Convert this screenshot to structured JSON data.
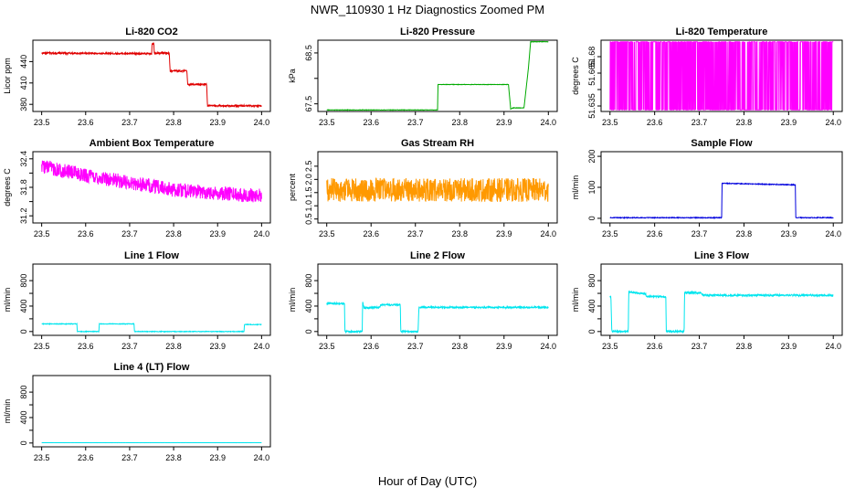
{
  "title": "NWR_110930  1 Hz Diagnostics Zoomed PM",
  "xlabel": "Hour of Day (UTC)",
  "chart_data": [
    {
      "type": "line",
      "title": "Li-820 CO2",
      "ylabel": "Licor ppm",
      "xlim": [
        23.48,
        24.02
      ],
      "ylim": [
        370,
        470
      ],
      "xticks": [
        "23.5",
        "23.6",
        "23.7",
        "23.8",
        "23.9",
        "24.0"
      ],
      "yticks": [
        {
          "v": 380,
          "label": "380"
        },
        {
          "v": 410,
          "label": "410"
        },
        {
          "v": 440,
          "label": "440"
        }
      ],
      "color": "#e00000",
      "noise": 1.2,
      "series": [
        {
          "x": [
            23.5,
            23.75,
            23.751,
            23.755,
            23.756,
            23.79,
            23.792,
            23.83,
            23.832,
            23.875,
            23.877,
            24.0
          ],
          "y": [
            452,
            451,
            465,
            466,
            452,
            452,
            427,
            427,
            408,
            408,
            378,
            378
          ]
        }
      ]
    },
    {
      "type": "line",
      "title": "Li-820 Pressure",
      "ylabel": "kPa",
      "xlim": [
        23.48,
        24.02
      ],
      "ylim": [
        67.35,
        68.75
      ],
      "xticks": [
        "23.5",
        "23.6",
        "23.7",
        "23.8",
        "23.9",
        "24.0"
      ],
      "yticks": [
        {
          "v": 67.5,
          "label": "67.5"
        },
        {
          "v": 68.0,
          "label": ""
        },
        {
          "v": 68.5,
          "label": "68.5"
        }
      ],
      "color": "#00aa00",
      "noise": 0.004,
      "series": [
        {
          "x": [
            23.5,
            23.75,
            23.751,
            23.91,
            23.915,
            23.92,
            23.945,
            23.955,
            23.96,
            24.0
          ],
          "y": [
            67.38,
            67.38,
            67.88,
            67.88,
            67.4,
            67.42,
            67.42,
            68.2,
            68.72,
            68.72
          ]
        }
      ]
    },
    {
      "type": "line",
      "title": "Li-820 Temperature",
      "ylabel": "degrees C",
      "xlim": [
        23.48,
        24.02
      ],
      "ylim": [
        51.63,
        51.695
      ],
      "xticks": [
        "23.5",
        "23.6",
        "23.7",
        "23.8",
        "23.9",
        "24.0"
      ],
      "yticks": [
        {
          "v": 51.635,
          "label": "51.635"
        },
        {
          "v": 51.65,
          "label": ""
        },
        {
          "v": 51.665,
          "label": "51.665"
        },
        {
          "v": 51.68,
          "label": "51.68"
        }
      ],
      "color": "#ff00ff",
      "toggle": [
        51.6315,
        51.6935
      ],
      "series": [
        {
          "x": [
            23.5,
            24.0
          ],
          "y": [
            51.6315,
            51.6935
          ]
        }
      ]
    },
    {
      "type": "line",
      "title": "Ambient Box Temperature",
      "ylabel": "degrees C",
      "xlim": [
        23.48,
        24.02
      ],
      "ylim": [
        31.05,
        32.55
      ],
      "xticks": [
        "23.5",
        "23.6",
        "23.7",
        "23.8",
        "23.9",
        "24.0"
      ],
      "yticks": [
        {
          "v": 31.2,
          "label": "31.2"
        },
        {
          "v": 31.5,
          "label": ""
        },
        {
          "v": 31.8,
          "label": "31.8"
        },
        {
          "v": 32.1,
          "label": ""
        },
        {
          "v": 32.4,
          "label": "32.4"
        }
      ],
      "color": "#ff00ff",
      "noise": 0.15,
      "series": [
        {
          "x": [
            23.5,
            23.6,
            23.7,
            23.8,
            23.9,
            24.0
          ],
          "y": [
            32.25,
            32.05,
            31.9,
            31.75,
            31.68,
            31.62
          ]
        }
      ]
    },
    {
      "type": "line",
      "title": "Gas Stream RH",
      "ylabel": "percent",
      "xlim": [
        23.48,
        24.02
      ],
      "ylim": [
        0.35,
        3.05
      ],
      "xticks": [
        "23.5",
        "23.6",
        "23.7",
        "23.8",
        "23.9",
        "24.0"
      ],
      "yticks": [
        {
          "v": 0.5,
          "label": "0.5"
        },
        {
          "v": 1.0,
          "label": "1.0"
        },
        {
          "v": 1.5,
          "label": "1.5"
        },
        {
          "v": 2.0,
          "label": "2.0"
        },
        {
          "v": 2.5,
          "label": "2.5"
        }
      ],
      "color": "#ff9900",
      "noise": 0.45,
      "series": [
        {
          "x": [
            23.5,
            24.0
          ],
          "y": [
            1.6,
            1.6
          ]
        }
      ]
    },
    {
      "type": "line",
      "title": "Sample Flow",
      "ylabel": "ml/min",
      "xlim": [
        23.48,
        24.02
      ],
      "ylim": [
        -15,
        215
      ],
      "xticks": [
        "23.5",
        "23.6",
        "23.7",
        "23.8",
        "23.9",
        "24.0"
      ],
      "yticks": [
        {
          "v": 0,
          "label": "0"
        },
        {
          "v": 100,
          "label": "100"
        },
        {
          "v": 200,
          "label": "200"
        }
      ],
      "color": "#0000dd",
      "noise": 1.2,
      "series": [
        {
          "x": [
            23.5,
            23.75,
            23.751,
            23.915,
            23.916,
            24.0
          ],
          "y": [
            2,
            2,
            113,
            108,
            2,
            2
          ]
        }
      ]
    },
    {
      "type": "line",
      "title": "Line 1 Flow",
      "ylabel": "ml/min",
      "xlim": [
        23.48,
        24.02
      ],
      "ylim": [
        -60,
        1060
      ],
      "xticks": [
        "23.5",
        "23.6",
        "23.7",
        "23.8",
        "23.9",
        "24.0"
      ],
      "yticks": [
        {
          "v": 0,
          "label": "0"
        },
        {
          "v": 200,
          "label": ""
        },
        {
          "v": 400,
          "label": "400"
        },
        {
          "v": 600,
          "label": ""
        },
        {
          "v": 800,
          "label": "800"
        }
      ],
      "color": "#00e5ee",
      "noise": 5,
      "series": [
        {
          "x": [
            23.5,
            23.58,
            23.581,
            23.63,
            23.631,
            23.71,
            23.711,
            23.96,
            23.961,
            24.0
          ],
          "y": [
            120,
            120,
            0,
            0,
            120,
            120,
            0,
            0,
            110,
            110
          ]
        }
      ]
    },
    {
      "type": "line",
      "title": "Line 2 Flow",
      "ylabel": "ml/min",
      "xlim": [
        23.48,
        24.02
      ],
      "ylim": [
        -60,
        1060
      ],
      "xticks": [
        "23.5",
        "23.6",
        "23.7",
        "23.8",
        "23.9",
        "24.0"
      ],
      "yticks": [
        {
          "v": 0,
          "label": "0"
        },
        {
          "v": 200,
          "label": ""
        },
        {
          "v": 400,
          "label": "400"
        },
        {
          "v": 600,
          "label": ""
        },
        {
          "v": 800,
          "label": "800"
        }
      ],
      "color": "#00e5ee",
      "noise": 12,
      "series": [
        {
          "x": [
            23.5,
            23.54,
            23.541,
            23.58,
            23.581,
            23.584,
            23.62,
            23.621,
            23.666,
            23.667,
            23.706,
            23.708,
            24.0
          ],
          "y": [
            440,
            440,
            0,
            0,
            480,
            370,
            380,
            420,
            420,
            0,
            0,
            380,
            380
          ]
        }
      ]
    },
    {
      "type": "line",
      "title": "Line 3 Flow",
      "ylabel": "ml/min",
      "xlim": [
        23.48,
        24.02
      ],
      "ylim": [
        -60,
        1060
      ],
      "xticks": [
        "23.5",
        "23.6",
        "23.7",
        "23.8",
        "23.9",
        "24.0"
      ],
      "yticks": [
        {
          "v": 0,
          "label": "0"
        },
        {
          "v": 200,
          "label": ""
        },
        {
          "v": 400,
          "label": "400"
        },
        {
          "v": 600,
          "label": ""
        },
        {
          "v": 800,
          "label": "800"
        }
      ],
      "color": "#00e5ee",
      "noise": 14,
      "series": [
        {
          "x": [
            23.5,
            23.502,
            23.504,
            23.541,
            23.542,
            23.58,
            23.581,
            23.625,
            23.626,
            23.666,
            23.667,
            23.705,
            23.706,
            24.0
          ],
          "y": [
            550,
            550,
            0,
            0,
            620,
            590,
            550,
            550,
            0,
            0,
            610,
            610,
            570,
            570
          ]
        }
      ]
    },
    {
      "type": "line",
      "title": "Line 4 (LT) Flow",
      "ylabel": "ml/min",
      "xlim": [
        23.48,
        24.02
      ],
      "ylim": [
        -60,
        1060
      ],
      "xticks": [
        "23.5",
        "23.6",
        "23.7",
        "23.8",
        "23.9",
        "24.0"
      ],
      "yticks": [
        {
          "v": 0,
          "label": "0"
        },
        {
          "v": 200,
          "label": ""
        },
        {
          "v": 400,
          "label": "400"
        },
        {
          "v": 600,
          "label": ""
        },
        {
          "v": 800,
          "label": "800"
        }
      ],
      "color": "#00e5ee",
      "noise": 1,
      "series": [
        {
          "x": [
            23.5,
            24.0
          ],
          "y": [
            5,
            5
          ]
        }
      ]
    }
  ]
}
